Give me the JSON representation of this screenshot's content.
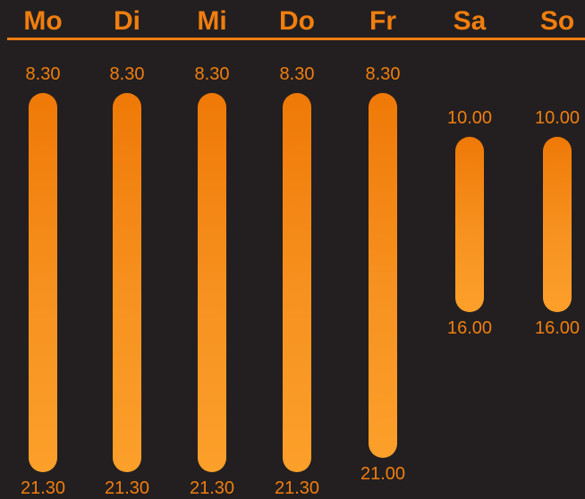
{
  "chart_data": {
    "type": "bar",
    "categories": [
      "Mo",
      "Di",
      "Mi",
      "Do",
      "Fr",
      "Sa",
      "So"
    ],
    "series": [
      {
        "start_labels": [
          "8.30",
          "8.30",
          "8.30",
          "8.30",
          "8.30",
          "10.00",
          "10.00"
        ],
        "end_labels": [
          "21.30",
          "21.30",
          "21.30",
          "21.30",
          "21.00",
          "16.00",
          "16.00"
        ],
        "start_values": [
          8.5,
          8.5,
          8.5,
          8.5,
          8.5,
          10.0,
          10.0
        ],
        "end_values": [
          21.5,
          21.5,
          21.5,
          21.5,
          21.0,
          16.0,
          16.0
        ]
      }
    ],
    "ylim": [
      8.5,
      21.5
    ],
    "y_inverted": true,
    "grid": false,
    "colors": {
      "background": "#231f20",
      "accent": "#f07e0f",
      "bar_top": "#ef7907",
      "bar_bottom": "#fca02a"
    }
  }
}
